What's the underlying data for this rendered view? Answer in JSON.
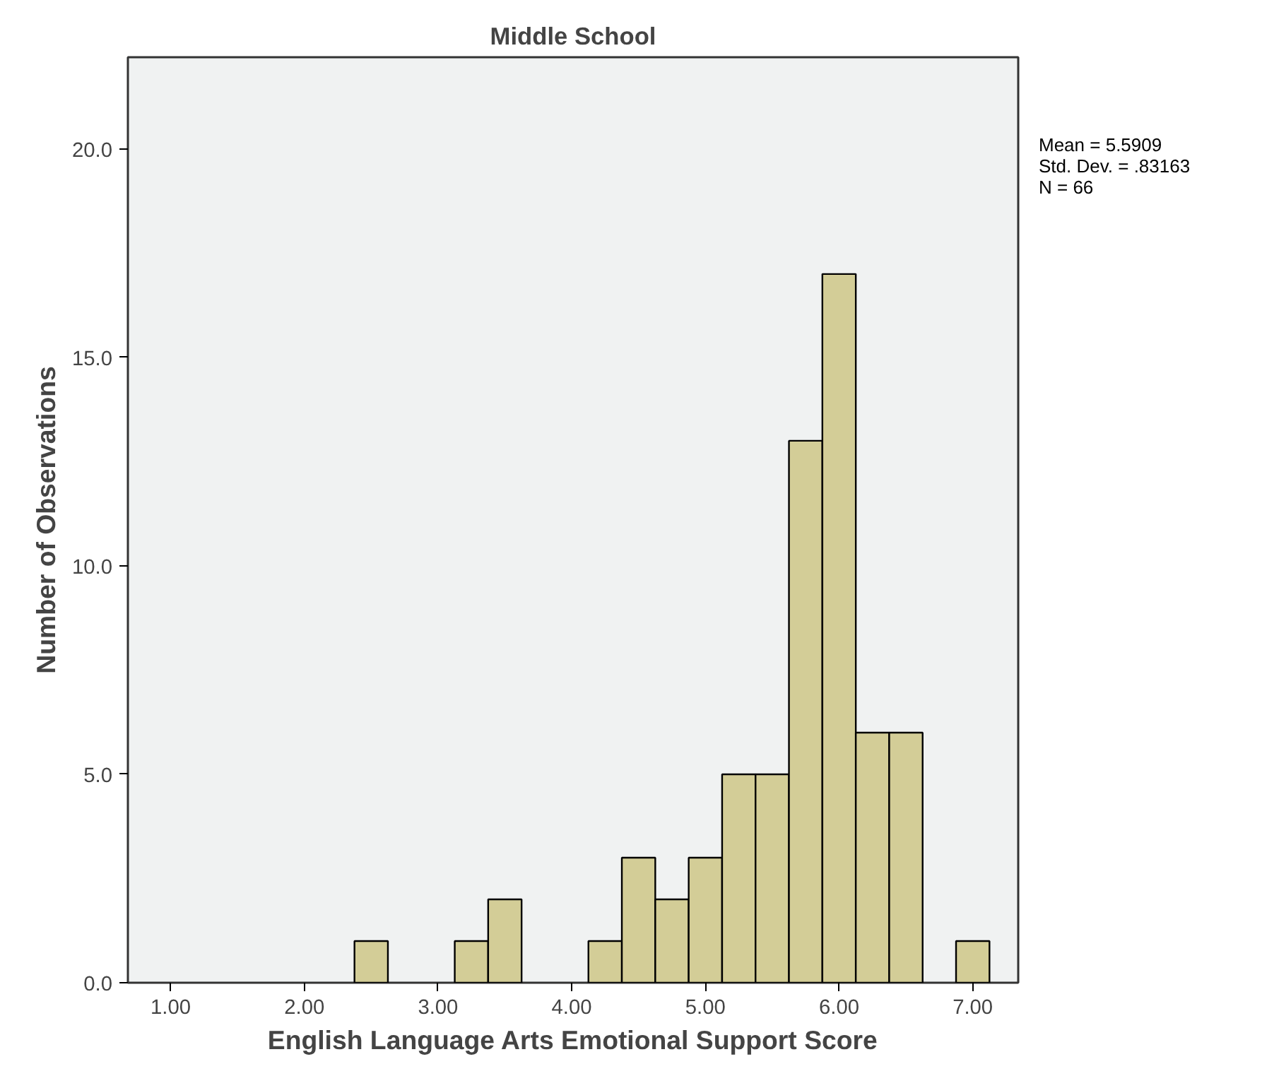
{
  "chart_data": {
    "type": "histogram",
    "title": "Middle School",
    "xlabel": "English Language Arts Emotional Support Score",
    "ylabel": "Number of Observations",
    "bins": [
      2.375,
      2.625,
      2.875,
      3.125,
      3.375,
      3.625,
      3.875,
      4.125,
      4.375,
      4.625,
      4.875,
      5.125,
      5.375,
      5.625,
      5.875,
      6.125,
      6.375,
      6.625,
      6.875,
      7.125
    ],
    "values": [
      1,
      0,
      0,
      1,
      2,
      0,
      0,
      1,
      3,
      2,
      3,
      5,
      5,
      13,
      17,
      6,
      6,
      0,
      1
    ],
    "color": "#d3cd97",
    "xlim": [
      0.68,
      7.34
    ],
    "ylim": [
      0,
      22.2
    ],
    "xticks": [
      {
        "value": 1,
        "label": "1.00"
      },
      {
        "value": 2,
        "label": "2.00"
      },
      {
        "value": 3,
        "label": "3.00"
      },
      {
        "value": 4,
        "label": "4.00"
      },
      {
        "value": 5,
        "label": "5.00"
      },
      {
        "value": 6,
        "label": "6.00"
      },
      {
        "value": 7,
        "label": "7.00"
      }
    ],
    "yticks": [
      {
        "value": 0,
        "label": "0.0"
      },
      {
        "value": 5,
        "label": "5.0"
      },
      {
        "value": 10,
        "label": "10.0"
      },
      {
        "value": 15,
        "label": "15.0"
      },
      {
        "value": 20,
        "label": "20.0"
      }
    ],
    "annotations": [
      "Mean = 5.5909",
      "Std. Dev. = .83163",
      "N = 66"
    ],
    "grid": false
  }
}
